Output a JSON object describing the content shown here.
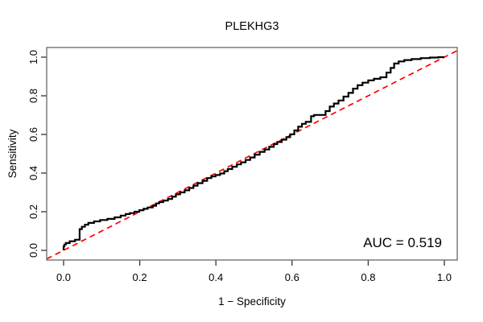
{
  "title": "PLEKHG3",
  "auc_label": "AUC = 0.519",
  "axes": {
    "x": {
      "label": "1 − Specificity",
      "tick_labels": [
        "0.0",
        "0.2",
        "0.4",
        "0.6",
        "0.8",
        "1.0"
      ],
      "tick_values": [
        0,
        0.2,
        0.4,
        0.6,
        0.8,
        1.0
      ]
    },
    "y": {
      "label": "Sensitivity",
      "tick_labels": [
        "0.0",
        "0.2",
        "0.4",
        "0.6",
        "0.8",
        "1.0"
      ],
      "tick_values": [
        0,
        0.2,
        0.4,
        0.6,
        0.8,
        1.0
      ]
    }
  },
  "colors": {
    "roc_curve": "#000000",
    "reference_line": "#ff0000",
    "box": "#666666",
    "tick": "#333333",
    "text": "#000000",
    "background": "#ffffff"
  },
  "chart_data": {
    "type": "line",
    "title": "PLEKHG3",
    "xlabel": "1 − Specificity",
    "ylabel": "Sensitivity",
    "xlim": [
      0,
      1
    ],
    "ylim": [
      0,
      1
    ],
    "grid": false,
    "legend": "none",
    "annotations": [
      {
        "text": "AUC = 0.519",
        "anchor": "bottom-right"
      }
    ],
    "series": [
      {
        "name": "ROC curve PLEKHG3",
        "style": "step",
        "color": "#000000",
        "auc": 0.519,
        "points": [
          [
            0.0,
            0.0
          ],
          [
            0.002,
            0.02
          ],
          [
            0.006,
            0.03
          ],
          [
            0.016,
            0.038
          ],
          [
            0.03,
            0.047
          ],
          [
            0.042,
            0.055
          ],
          [
            0.048,
            0.11
          ],
          [
            0.056,
            0.122
          ],
          [
            0.065,
            0.133
          ],
          [
            0.08,
            0.142
          ],
          [
            0.096,
            0.15
          ],
          [
            0.115,
            0.157
          ],
          [
            0.134,
            0.163
          ],
          [
            0.15,
            0.171
          ],
          [
            0.163,
            0.18
          ],
          [
            0.174,
            0.188
          ],
          [
            0.186,
            0.193
          ],
          [
            0.199,
            0.2
          ],
          [
            0.21,
            0.208
          ],
          [
            0.221,
            0.215
          ],
          [
            0.234,
            0.222
          ],
          [
            0.243,
            0.231
          ],
          [
            0.251,
            0.243
          ],
          [
            0.262,
            0.25
          ],
          [
            0.274,
            0.258
          ],
          [
            0.285,
            0.266
          ],
          [
            0.295,
            0.278
          ],
          [
            0.306,
            0.29
          ],
          [
            0.318,
            0.3
          ],
          [
            0.33,
            0.311
          ],
          [
            0.341,
            0.323
          ],
          [
            0.352,
            0.335
          ],
          [
            0.365,
            0.348
          ],
          [
            0.377,
            0.36
          ],
          [
            0.388,
            0.374
          ],
          [
            0.399,
            0.383
          ],
          [
            0.411,
            0.39
          ],
          [
            0.422,
            0.398
          ],
          [
            0.431,
            0.41
          ],
          [
            0.443,
            0.421
          ],
          [
            0.455,
            0.433
          ],
          [
            0.466,
            0.445
          ],
          [
            0.478,
            0.456
          ],
          [
            0.49,
            0.468
          ],
          [
            0.502,
            0.481
          ],
          [
            0.515,
            0.495
          ],
          [
            0.528,
            0.51
          ],
          [
            0.54,
            0.522
          ],
          [
            0.552,
            0.536
          ],
          [
            0.561,
            0.55
          ],
          [
            0.573,
            0.561
          ],
          [
            0.585,
            0.573
          ],
          [
            0.595,
            0.586
          ],
          [
            0.606,
            0.601
          ],
          [
            0.616,
            0.621
          ],
          [
            0.626,
            0.64
          ],
          [
            0.636,
            0.655
          ],
          [
            0.65,
            0.665
          ],
          [
            0.658,
            0.694
          ],
          [
            0.688,
            0.701
          ],
          [
            0.699,
            0.721
          ],
          [
            0.71,
            0.744
          ],
          [
            0.722,
            0.76
          ],
          [
            0.735,
            0.776
          ],
          [
            0.748,
            0.796
          ],
          [
            0.76,
            0.815
          ],
          [
            0.772,
            0.837
          ],
          [
            0.785,
            0.855
          ],
          [
            0.8,
            0.868
          ],
          [
            0.815,
            0.88
          ],
          [
            0.832,
            0.888
          ],
          [
            0.848,
            0.896
          ],
          [
            0.859,
            0.92
          ],
          [
            0.868,
            0.944
          ],
          [
            0.88,
            0.967
          ],
          [
            0.895,
            0.978
          ],
          [
            0.914,
            0.985
          ],
          [
            0.938,
            0.99
          ],
          [
            0.962,
            0.995
          ],
          [
            0.984,
            0.998
          ],
          [
            1.0,
            1.0
          ]
        ]
      },
      {
        "name": "chance reference line",
        "style": "dashed",
        "color": "#ff0000",
        "points": [
          [
            0,
            0
          ],
          [
            1,
            1
          ]
        ]
      }
    ]
  }
}
